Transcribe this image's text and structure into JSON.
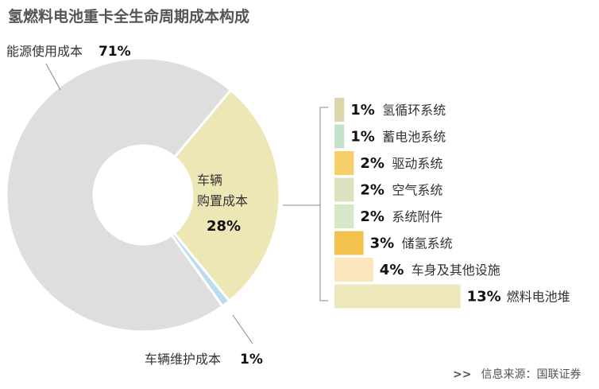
{
  "title": "氢燃料电池重卡全生命周期成本构成",
  "source": {
    "marker": ">>",
    "text": "信息来源：国联证券"
  },
  "colors": {
    "donut_main": "#dedede",
    "donut_purchase": "#ede7b6",
    "donut_maintenance": "#b9dcef",
    "connector": "#888888",
    "text_dark": "#333333",
    "text_bold": "#111111"
  },
  "chart_data": [
    {
      "type": "pie",
      "title": "",
      "labels": [
        "能源使用成本",
        "车辆购置成本",
        "车辆维护成本"
      ],
      "label_lines": [
        [
          "能源使用成本"
        ],
        [
          "车辆",
          "购置成本"
        ],
        [
          "车辆维护成本"
        ]
      ],
      "values": [
        71,
        28,
        1
      ],
      "value_labels": [
        "71%",
        "28%",
        "1%"
      ],
      "colors": [
        "#dedede",
        "#ede7b6",
        "#b9dcef"
      ],
      "donut": true
    },
    {
      "type": "bar",
      "orientation": "horizontal",
      "title": "",
      "categories": [
        "氢循环系统",
        "蓄电池系统",
        "驱动系统",
        "空气系统",
        "系统附件",
        "储氢系统",
        "车身及其他设施",
        "燃料电池堆"
      ],
      "values": [
        1,
        1,
        2,
        2,
        2,
        3,
        4,
        13
      ],
      "value_labels": [
        "1%",
        "1%",
        "2%",
        "2%",
        "2%",
        "3%",
        "4%",
        "13%"
      ],
      "colors": [
        "#ddd6a8",
        "#c4e1cb",
        "#f6cf6a",
        "#dde2be",
        "#d6e8c8",
        "#f3c24d",
        "#fbe5bd",
        "#ede8bb"
      ]
    }
  ]
}
